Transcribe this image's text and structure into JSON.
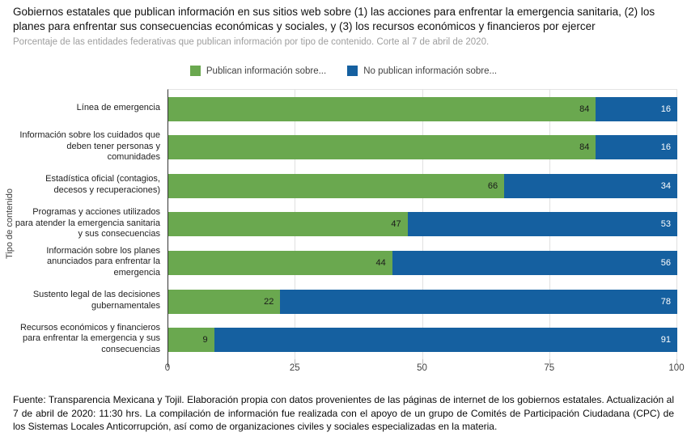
{
  "footer": "Fuente: Transparencia Mexicana y Tojil. Elaboración propia con datos provenientes de las páginas de internet de los gobiernos estatales. Actualización al 7 de abril de 2020: 11:30 hrs. La compilación de información fue realizada con el apoyo de un grupo de Comités de Participación Ciudadana (CPC) de los Sistemas Locales Anticorrupción, así como de organizaciones civiles y sociales especializadas en la materia.",
  "chart_data": {
    "type": "bar",
    "orientation": "horizontal",
    "stacked": true,
    "title": "Gobiernos estatales que publican información en sus sitios web sobre (1) las acciones para enfrentar la emergencia sanitaria, (2) los planes para enfrentar sus consecuencias económicas y sociales, y (3) los recursos económicos y financieros por ejercer",
    "subtitle": "Porcentaje de las entidades federativas que publican información por tipo de contenido. Corte al 7 de abril de 2020.",
    "ylabel": "Tipo de contenido",
    "xlabel": "",
    "xlim": [
      0,
      100
    ],
    "xticks": [
      0,
      25,
      50,
      75,
      100
    ],
    "grid": true,
    "legend_position": "top",
    "categories": [
      "Línea de emergencia",
      "Información sobre los cuidados que deben tener personas y comunidades",
      "Estadística oficial (contagios, decesos y recuperaciones)",
      "Programas y acciones utilizados para atender la emergencia sanitaria y sus consecuencias",
      "Información sobre los planes anunciados para enfrentar la emergencia",
      "Sustento legal de las decisiones gubernamentales",
      "Recursos económicos y financieros para enfrentar la emergencia y sus consecuencias"
    ],
    "series": [
      {
        "name": "Publican información sobre...",
        "color": "#6aa84f",
        "label_color": "#1a1a1a",
        "values": [
          84,
          84,
          66,
          47,
          44,
          22,
          9
        ]
      },
      {
        "name": "No publican información sobre...",
        "color": "#1560a0",
        "label_color": "#ffffff",
        "values": [
          16,
          16,
          34,
          53,
          56,
          78,
          91
        ]
      }
    ]
  }
}
